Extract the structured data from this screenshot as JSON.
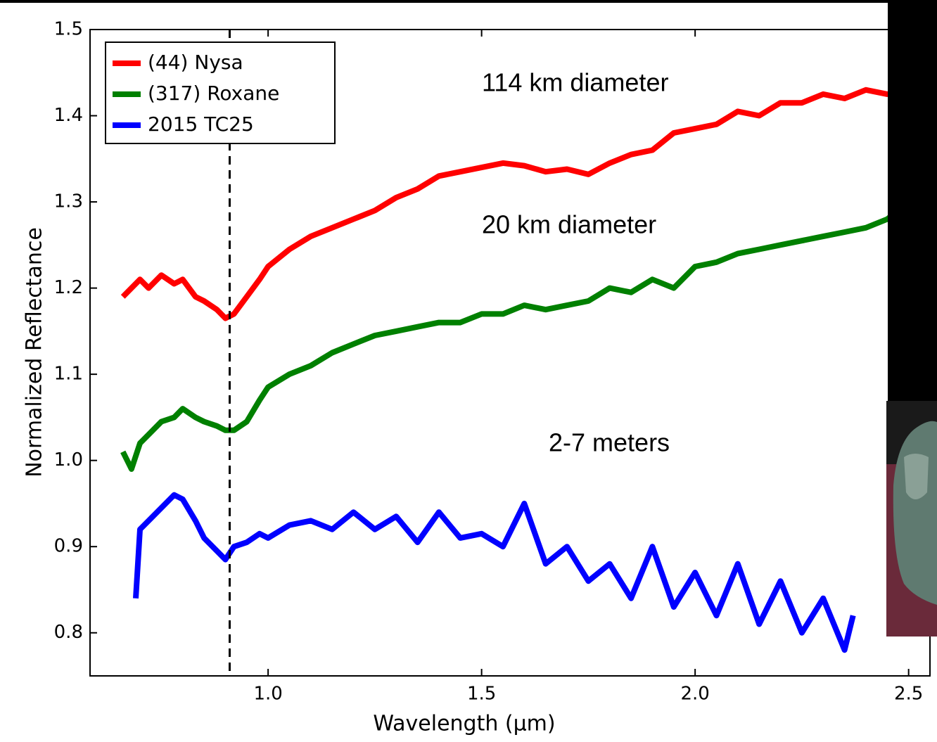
{
  "chart_data": {
    "type": "line",
    "xlabel": "Wavelength (μm)",
    "ylabel": "Normalized Reflectance",
    "xlim": [
      0.583,
      2.55
    ],
    "ylim": [
      0.75,
      1.5
    ],
    "xticks": [
      {
        "value": 1.0,
        "label": "1.0"
      },
      1.5,
      {
        "value": 2.0,
        "label": "2.0"
      },
      2.5
    ],
    "yticks": [
      0.8,
      0.9,
      {
        "value": 1.0,
        "label": "1.0"
      },
      1.1,
      1.2,
      1.3,
      1.4,
      1.5
    ],
    "vline": 0.91,
    "legend": "upper left",
    "annotations": [
      "114 km diameter",
      "20 km diameter",
      "2-7 meters"
    ],
    "series": [
      {
        "name": "(44) Nysa",
        "color": "#ff0000",
        "x": [
          0.66,
          0.68,
          0.7,
          0.72,
          0.75,
          0.78,
          0.8,
          0.83,
          0.85,
          0.88,
          0.9,
          0.92,
          0.95,
          0.98,
          1.0,
          1.05,
          1.1,
          1.15,
          1.2,
          1.25,
          1.3,
          1.35,
          1.4,
          1.45,
          1.5,
          1.55,
          1.6,
          1.65,
          1.7,
          1.75,
          1.8,
          1.85,
          1.9,
          1.95,
          2.0,
          2.05,
          2.1,
          2.15,
          2.2,
          2.25,
          2.3,
          2.35,
          2.4,
          2.45,
          2.5
        ],
        "values": [
          1.19,
          1.2,
          1.21,
          1.2,
          1.215,
          1.205,
          1.21,
          1.19,
          1.185,
          1.175,
          1.165,
          1.17,
          1.19,
          1.21,
          1.225,
          1.245,
          1.26,
          1.27,
          1.28,
          1.29,
          1.305,
          1.315,
          1.33,
          1.335,
          1.34,
          1.345,
          1.342,
          1.335,
          1.338,
          1.332,
          1.345,
          1.355,
          1.36,
          1.38,
          1.385,
          1.39,
          1.405,
          1.4,
          1.415,
          1.415,
          1.425,
          1.42,
          1.43,
          1.425,
          1.43
        ]
      },
      {
        "name": "(317) Roxane",
        "color": "#008000",
        "x": [
          0.66,
          0.68,
          0.7,
          0.72,
          0.75,
          0.78,
          0.8,
          0.83,
          0.85,
          0.88,
          0.9,
          0.92,
          0.95,
          0.98,
          1.0,
          1.05,
          1.1,
          1.15,
          1.2,
          1.25,
          1.3,
          1.35,
          1.4,
          1.45,
          1.5,
          1.55,
          1.6,
          1.65,
          1.7,
          1.75,
          1.8,
          1.85,
          1.9,
          1.95,
          2.0,
          2.05,
          2.1,
          2.15,
          2.2,
          2.25,
          2.3,
          2.35,
          2.4,
          2.45,
          2.5
        ],
        "values": [
          1.01,
          0.99,
          1.02,
          1.03,
          1.045,
          1.05,
          1.06,
          1.05,
          1.045,
          1.04,
          1.035,
          1.035,
          1.045,
          1.07,
          1.085,
          1.1,
          1.11,
          1.125,
          1.135,
          1.145,
          1.15,
          1.155,
          1.16,
          1.16,
          1.17,
          1.17,
          1.18,
          1.175,
          1.18,
          1.185,
          1.2,
          1.195,
          1.21,
          1.2,
          1.225,
          1.23,
          1.24,
          1.245,
          1.25,
          1.255,
          1.26,
          1.265,
          1.27,
          1.28,
          1.3
        ]
      },
      {
        "name": "2015 TC25",
        "color": "#0000ff",
        "x": [
          0.69,
          0.7,
          0.72,
          0.75,
          0.78,
          0.8,
          0.83,
          0.85,
          0.88,
          0.9,
          0.92,
          0.95,
          0.98,
          1.0,
          1.05,
          1.1,
          1.15,
          1.2,
          1.25,
          1.3,
          1.35,
          1.4,
          1.45,
          1.5,
          1.55,
          1.6,
          1.65,
          1.7,
          1.75,
          1.8,
          1.85,
          1.9,
          1.95,
          2.0,
          2.05,
          2.1,
          2.15,
          2.2,
          2.25,
          2.3,
          2.35,
          2.37
        ],
        "values": [
          0.84,
          0.92,
          0.93,
          0.945,
          0.96,
          0.955,
          0.93,
          0.91,
          0.895,
          0.885,
          0.9,
          0.905,
          0.915,
          0.91,
          0.925,
          0.93,
          0.92,
          0.94,
          0.92,
          0.935,
          0.905,
          0.94,
          0.91,
          0.915,
          0.9,
          0.95,
          0.88,
          0.9,
          0.86,
          0.88,
          0.84,
          0.9,
          0.83,
          0.87,
          0.82,
          0.88,
          0.81,
          0.86,
          0.8,
          0.84,
          0.78,
          0.82
        ]
      }
    ]
  }
}
